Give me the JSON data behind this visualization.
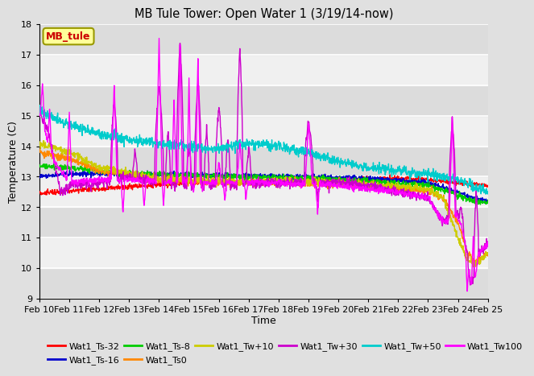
{
  "title": "MB Tule Tower: Open Water 1 (3/19/14-now)",
  "xlabel": "Time",
  "ylabel": "Temperature (C)",
  "ylim": [
    9.0,
    18.0
  ],
  "yticks": [
    9.0,
    10.0,
    11.0,
    12.0,
    13.0,
    14.0,
    15.0,
    16.0,
    17.0,
    18.0
  ],
  "date_labels": [
    "Feb 10",
    "Feb 11",
    "Feb 12",
    "Feb 13",
    "Feb 14",
    "Feb 15",
    "Feb 16",
    "Feb 17",
    "Feb 18",
    "Feb 19",
    "Feb 20",
    "Feb 21",
    "Feb 22",
    "Feb 23",
    "Feb 24",
    "Feb 25"
  ],
  "bg_color": "#e0e0e0",
  "plot_bg_light": "#f0f0f0",
  "plot_bg_dark": "#dcdcdc",
  "grid_color": "#ffffff",
  "annotation": {
    "text": "MB_tule",
    "color": "#cc0000",
    "bg": "#ffff99",
    "edge": "#999900"
  },
  "legend": [
    {
      "label": "Wat1_Ts-32",
      "color": "#ff0000"
    },
    {
      "label": "Wat1_Ts-16",
      "color": "#0000cc"
    },
    {
      "label": "Wat1_Ts-8",
      "color": "#00cc00"
    },
    {
      "label": "Wat1_Ts0",
      "color": "#ff8800"
    },
    {
      "label": "Wat1_Tw+10",
      "color": "#cccc00"
    },
    {
      "label": "Wat1_Tw+30",
      "color": "#cc00cc"
    },
    {
      "label": "Wat1_Tw+50",
      "color": "#00cccc"
    },
    {
      "label": "Wat1_Tw100",
      "color": "#ff00ff"
    }
  ]
}
